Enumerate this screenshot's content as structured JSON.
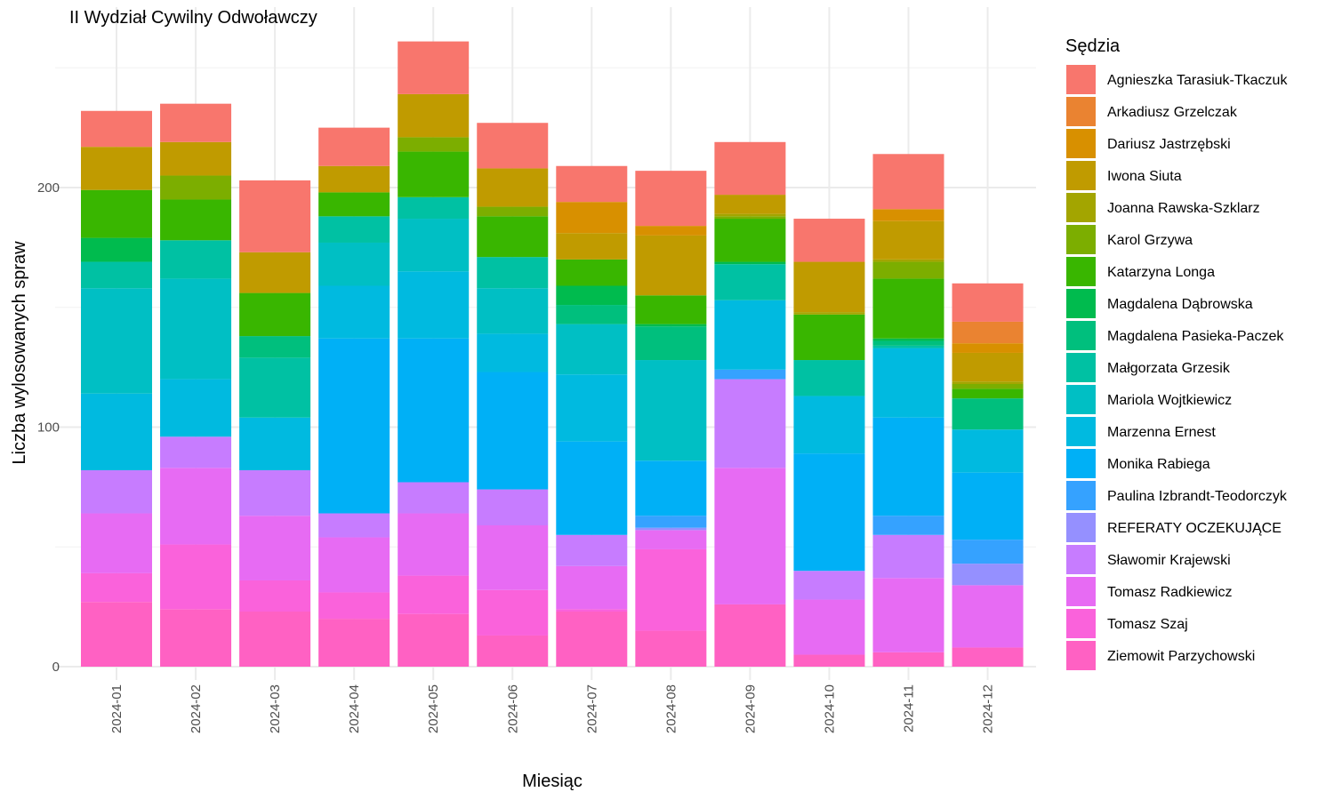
{
  "chart_data": {
    "type": "bar",
    "stacked": true,
    "title": "II Wydział Cywilny Odwoławczy",
    "xlabel": "Miesiąc",
    "ylabel": "Liczba wylosowanych spraw",
    "ylim": [
      0,
      270
    ],
    "yticks": [
      0,
      100,
      200
    ],
    "grid": true,
    "legend_title": "Sędzia",
    "legend_position": "right",
    "categories": [
      "2024-01",
      "2024-02",
      "2024-03",
      "2024-04",
      "2024-05",
      "2024-06",
      "2024-07",
      "2024-08",
      "2024-09",
      "2024-10",
      "2024-11",
      "2024-12"
    ],
    "series": [
      {
        "name": "Agnieszka Tarasiuk-Tkaczuk",
        "color": "#F8766D",
        "values": [
          15,
          16,
          30,
          16,
          22,
          19,
          15,
          23,
          22,
          18,
          23,
          16
        ]
      },
      {
        "name": "Arkadiusz Grzelczak",
        "color": "#EA8331",
        "values": [
          0,
          0,
          0,
          0,
          0,
          0,
          0,
          0,
          0,
          0,
          0,
          9
        ]
      },
      {
        "name": "Dariusz Jastrzębski",
        "color": "#D89000",
        "values": [
          0,
          0,
          0,
          0,
          0,
          0,
          13,
          4,
          0,
          0,
          5,
          4
        ]
      },
      {
        "name": "Iwona Siuta",
        "color": "#C09B00",
        "values": [
          18,
          14,
          17,
          11,
          18,
          16,
          11,
          25,
          8,
          21,
          16,
          12
        ]
      },
      {
        "name": "Joanna Rawska-Szklarz",
        "color": "#A3A500",
        "values": [
          0,
          0,
          0,
          0,
          0,
          0,
          0,
          0,
          1,
          1,
          1,
          1
        ]
      },
      {
        "name": "Karol Grzywa",
        "color": "#7CAE00",
        "values": [
          0,
          10,
          0,
          0,
          6,
          4,
          0,
          0,
          1,
          0,
          7,
          2
        ]
      },
      {
        "name": "Katarzyna Longa",
        "color": "#39B600",
        "values": [
          20,
          17,
          18,
          10,
          19,
          17,
          11,
          12,
          18,
          19,
          25,
          4
        ]
      },
      {
        "name": "Magdalena Dąbrowska",
        "color": "#00BB4E",
        "values": [
          10,
          0,
          0,
          0,
          0,
          0,
          8,
          1,
          1,
          0,
          1,
          0
        ]
      },
      {
        "name": "Magdalena Pasieka-Paczek",
        "color": "#00BF7D",
        "values": [
          0,
          0,
          9,
          0,
          0,
          0,
          8,
          14,
          0,
          0,
          2,
          13
        ]
      },
      {
        "name": "Małgorzata Grzesik",
        "color": "#00C1A3",
        "values": [
          11,
          16,
          25,
          11,
          9,
          13,
          0,
          0,
          15,
          15,
          1,
          0
        ]
      },
      {
        "name": "Mariola Wojtkiewicz",
        "color": "#00BFC4",
        "values": [
          44,
          42,
          0,
          18,
          22,
          19,
          21,
          42,
          0,
          0,
          0,
          0
        ]
      },
      {
        "name": "Marzenna Ernest",
        "color": "#00BAE0",
        "values": [
          32,
          24,
          22,
          22,
          28,
          16,
          28,
          0,
          29,
          24,
          29,
          18
        ]
      },
      {
        "name": "Monika Rabiega",
        "color": "#00B0F6",
        "values": [
          0,
          0,
          0,
          73,
          60,
          49,
          39,
          23,
          0,
          49,
          41,
          28
        ]
      },
      {
        "name": "Paulina Izbrandt-Teodorczyk",
        "color": "#35A2FF",
        "values": [
          0,
          0,
          0,
          0,
          0,
          0,
          0,
          5,
          4,
          0,
          8,
          10
        ]
      },
      {
        "name": "REFERATY OCZEKUJĄCE",
        "color": "#9590FF",
        "values": [
          0,
          0,
          0,
          0,
          0,
          0,
          0,
          1,
          0,
          0,
          0,
          9
        ]
      },
      {
        "name": "Sławomir Krajewski",
        "color": "#C77CFF",
        "values": [
          18,
          13,
          19,
          10,
          13,
          15,
          13,
          0,
          37,
          12,
          18,
          0
        ]
      },
      {
        "name": "Tomasz Radkiewicz",
        "color": "#E76BF3",
        "values": [
          25,
          32,
          27,
          23,
          26,
          27,
          18,
          8,
          57,
          23,
          31,
          26
        ]
      },
      {
        "name": "Tomasz Szaj",
        "color": "#FA62DB",
        "values": [
          12,
          27,
          13,
          11,
          16,
          19,
          1,
          34,
          0,
          0,
          0,
          0
        ]
      },
      {
        "name": "Ziemowit Parzychowski",
        "color": "#FF61C3",
        "values": [
          27,
          24,
          23,
          20,
          22,
          13,
          23,
          15,
          26,
          5,
          6,
          8
        ]
      }
    ]
  }
}
